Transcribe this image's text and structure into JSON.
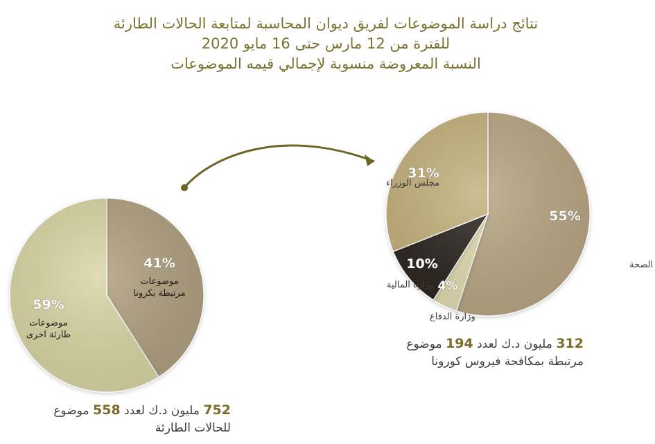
{
  "header": {
    "line1": "نتائج دراسة الموضوعات لفريق ديوان المحاسبة لمتابعة الحالات الطارئة",
    "line2": "للفترة من 12 مارس حتى 16 مايو 2020",
    "line3": "النسبة المعروضة منسوبة لإجمالي قيمه الموضوعات"
  },
  "colors": {
    "title": "#7a7330",
    "left_light": "#d9d5a4",
    "left_dark": "#b0a07f",
    "right_health": "#b9a683",
    "right_cabinet": "#c4b07a",
    "right_finance": "#2a241e",
    "right_defense": "#e2dcb0",
    "arrow": "#6e6526"
  },
  "chart_data": [
    {
      "type": "pie",
      "slices": [
        {
          "label": "موضوعات مرتبطة بكرونا",
          "line1": "موضوعات",
          "line2": "مرتبطة بكرونا",
          "value": 41,
          "display": "41%"
        },
        {
          "label": "موضوعات طارئة اخرى",
          "line1": "موضوعات",
          "line2": "طارئة اخرى",
          "value": 59,
          "display": "59%"
        }
      ],
      "caption": {
        "amount": "752",
        "text_a": "مليون د.ك لعدد",
        "count": "558",
        "text_b": "موضوع",
        "line2": "للحالات الطارئة"
      }
    },
    {
      "type": "pie",
      "slices": [
        {
          "label": "وزارة الصحة",
          "value": 55,
          "display": "55%"
        },
        {
          "label": "وزارة الدفاع",
          "value": 4,
          "display": "4%"
        },
        {
          "label": "وزارة المالية",
          "value": 10,
          "display": "10%"
        },
        {
          "label": "مجلس الوزراء",
          "value": 31,
          "display": "31%"
        }
      ],
      "caption": {
        "amount": "312",
        "text_a": "مليون د.ك لعدد",
        "count": "194",
        "text_b": "موضوع",
        "line2": "مرتبطة بمكافحة فيروس كورونا"
      }
    }
  ]
}
